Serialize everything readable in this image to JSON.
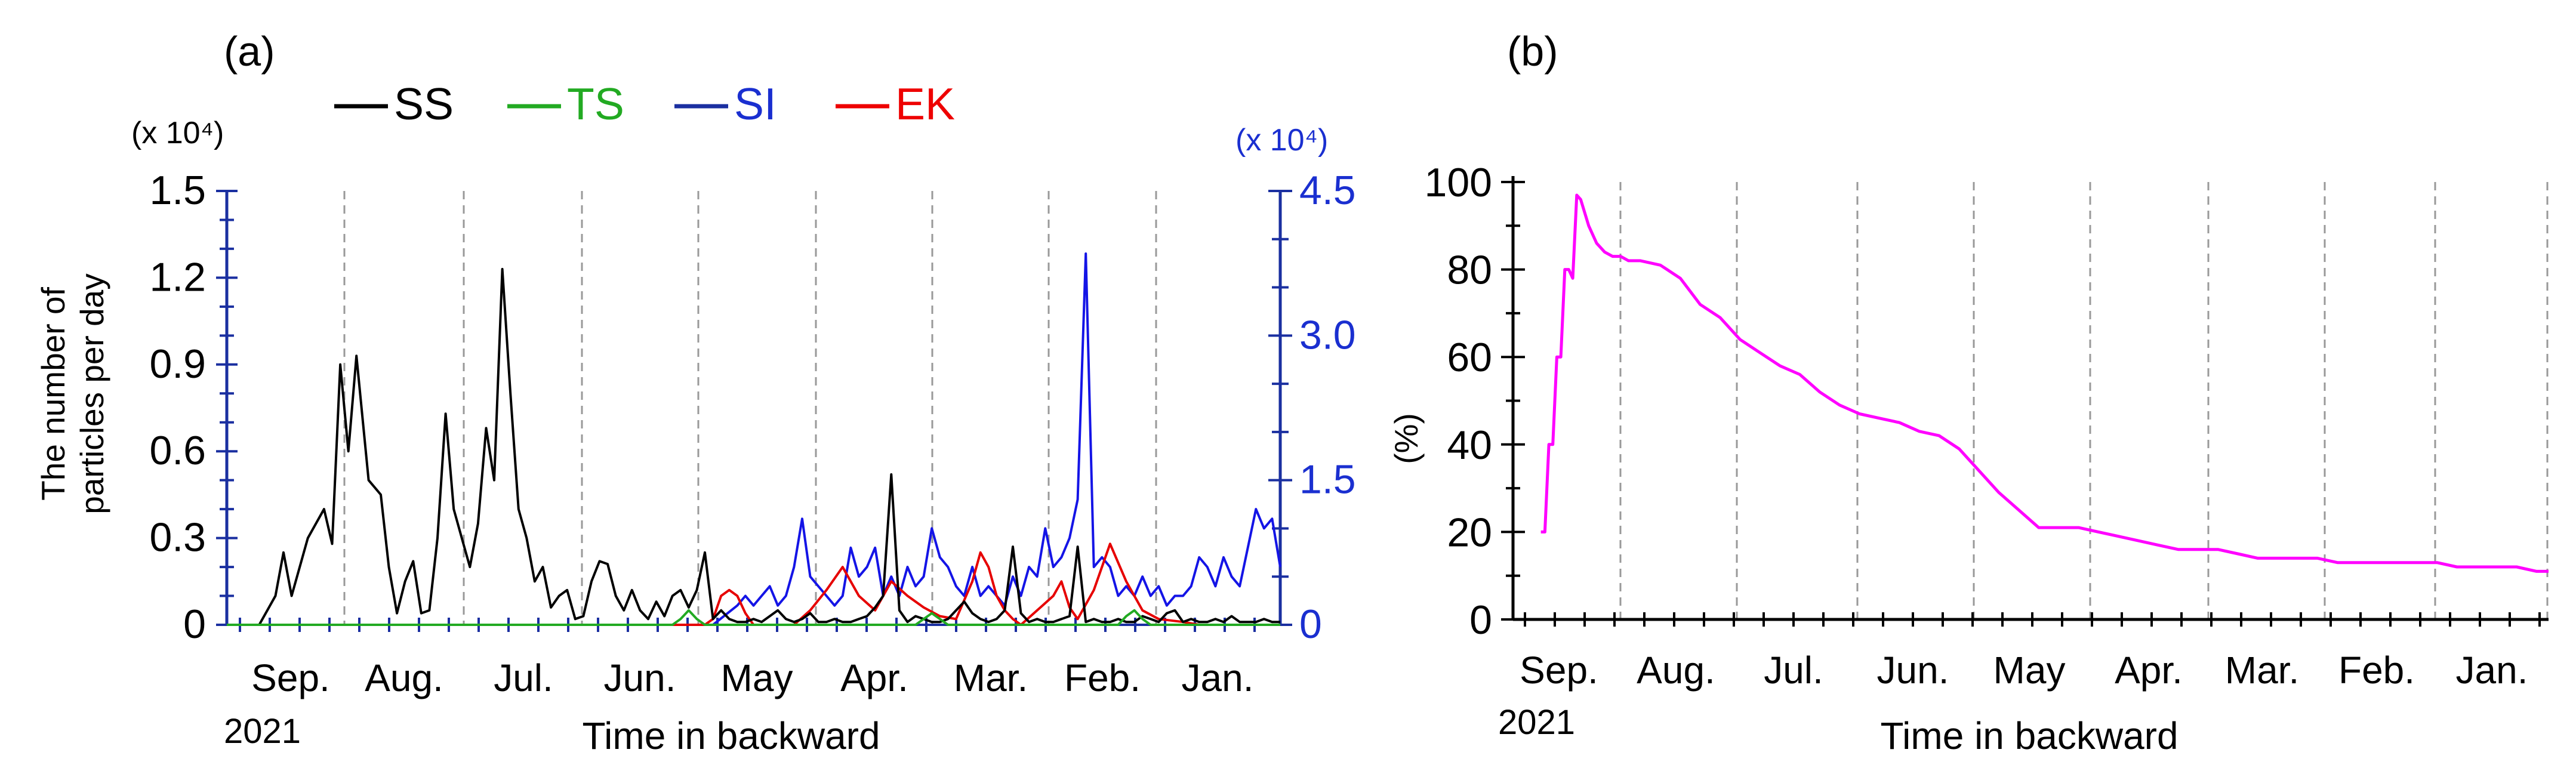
{
  "chart_data": [
    {
      "type": "line",
      "panel_label": "(a)",
      "xlabel": "Time in backward",
      "year_label": "2021",
      "months": [
        "Sep.",
        "Aug.",
        "Jul.",
        "Jun.",
        "May",
        "Apr.",
        "Mar.",
        "Feb.",
        "Jan."
      ],
      "ylabel_lines": [
        "The number of",
        "particles per day"
      ],
      "yscale_left": "(x 10⁴)",
      "yscale_right": "(x 10⁴)",
      "ylim_left": [
        0,
        1.5
      ],
      "ylim_right": [
        0,
        4.5
      ],
      "yticks_left": [
        "0",
        "0.3",
        "0.6",
        "0.9",
        "1.2",
        "1.5"
      ],
      "yticks_right": [
        "0",
        "1.5",
        "3.0",
        "4.5"
      ],
      "x_unit": "days in backward from the start of Sep. 2021",
      "xlim": [
        0,
        260
      ],
      "legend": [
        {
          "name": "SS",
          "color": "#000000"
        },
        {
          "name": "TS",
          "color": "#22aa22"
        },
        {
          "name": "SI",
          "color": "#0000ee"
        },
        {
          "name": "EK",
          "color": "#ee0000"
        }
      ],
      "series": [
        {
          "name": "SS",
          "axis": "left",
          "x": [
            0,
            8,
            12,
            14,
            16,
            20,
            24,
            26,
            28,
            30,
            32,
            35,
            38,
            40,
            42,
            44,
            46,
            48,
            50,
            52,
            54,
            56,
            58,
            60,
            62,
            64,
            66,
            68,
            70,
            72,
            74,
            76,
            78,
            80,
            82,
            84,
            86,
            88,
            90,
            92,
            94,
            96,
            98,
            100,
            102,
            104,
            106,
            108,
            110,
            112,
            114,
            116,
            118,
            120,
            122,
            124,
            126,
            128,
            130,
            132,
            134,
            136,
            138,
            140,
            142,
            144,
            146,
            148,
            150,
            152,
            154,
            156,
            158,
            160,
            162,
            164,
            166,
            168,
            170,
            172,
            174,
            176,
            178,
            180,
            182,
            184,
            186,
            188,
            190,
            192,
            194,
            196,
            198,
            200,
            202,
            204,
            206,
            208,
            210,
            212,
            214,
            216,
            218,
            220,
            222,
            224,
            226,
            228,
            230,
            232,
            234,
            236,
            238,
            240,
            242,
            244,
            246,
            248,
            250,
            252,
            254,
            256,
            258,
            260
          ],
          "y": [
            0,
            0,
            0.1,
            0.25,
            0.1,
            0.3,
            0.4,
            0.28,
            0.9,
            0.6,
            0.93,
            0.5,
            0.45,
            0.2,
            0.04,
            0.15,
            0.22,
            0.04,
            0.05,
            0.3,
            0.73,
            0.4,
            0.3,
            0.2,
            0.35,
            0.68,
            0.5,
            1.23,
            0.8,
            0.4,
            0.3,
            0.15,
            0.2,
            0.06,
            0.1,
            0.12,
            0.02,
            0.03,
            0.15,
            0.22,
            0.21,
            0.1,
            0.05,
            0.12,
            0.05,
            0.02,
            0.08,
            0.03,
            0.1,
            0.12,
            0.06,
            0.12,
            0.25,
            0.02,
            0.05,
            0.02,
            0.01,
            0.01,
            0.02,
            0.01,
            0.03,
            0.05,
            0.02,
            0.01,
            0.02,
            0.04,
            0.01,
            0.01,
            0.02,
            0.01,
            0.01,
            0.02,
            0.03,
            0.06,
            0.1,
            0.52,
            0.05,
            0.01,
            0.03,
            0.02,
            0.01,
            0.01,
            0.02,
            0.05,
            0.08,
            0.04,
            0.02,
            0.01,
            0.02,
            0.05,
            0.27,
            0.04,
            0.01,
            0.02,
            0.01,
            0.01,
            0.02,
            0.03,
            0.27,
            0.01,
            0.02,
            0.01,
            0.01,
            0.02,
            0.01,
            0.01,
            0.03,
            0.02,
            0.01,
            0.04,
            0.05,
            0.01,
            0.02,
            0.01,
            0.01,
            0.02,
            0.01,
            0.03,
            0.01,
            0.01,
            0.01,
            0.02,
            0.01,
            0.01
          ]
        },
        {
          "name": "TS",
          "axis": "left",
          "x": [
            0,
            110,
            112,
            114,
            116,
            118,
            120,
            130,
            170,
            172,
            174,
            176,
            178,
            220,
            222,
            224,
            226,
            228,
            260
          ],
          "y": [
            0,
            0,
            0.02,
            0.05,
            0.02,
            0,
            0,
            0,
            0,
            0.02,
            0.04,
            0.02,
            0,
            0,
            0.03,
            0.05,
            0.02,
            0,
            0
          ]
        },
        {
          "name": "SI",
          "axis": "right",
          "x": [
            0,
            120,
            126,
            128,
            130,
            132,
            134,
            136,
            138,
            140,
            142,
            144,
            146,
            148,
            150,
            152,
            154,
            156,
            158,
            160,
            162,
            164,
            166,
            168,
            170,
            172,
            174,
            176,
            178,
            180,
            182,
            184,
            186,
            188,
            190,
            192,
            194,
            196,
            198,
            200,
            202,
            204,
            206,
            208,
            210,
            212,
            214,
            216,
            218,
            220,
            222,
            224,
            226,
            228,
            230,
            232,
            234,
            236,
            238,
            240,
            242,
            244,
            246,
            248,
            250,
            252,
            254,
            256,
            258,
            260
          ],
          "y": [
            0,
            0,
            0.2,
            0.3,
            0.2,
            0.3,
            0.4,
            0.2,
            0.3,
            0.6,
            1.1,
            0.5,
            0.4,
            0.3,
            0.2,
            0.3,
            0.8,
            0.5,
            0.6,
            0.8,
            0.3,
            0.5,
            0.3,
            0.6,
            0.4,
            0.5,
            1.0,
            0.7,
            0.6,
            0.4,
            0.3,
            0.6,
            0.3,
            0.4,
            0.3,
            0.2,
            0.5,
            0.3,
            0.6,
            0.5,
            1.0,
            0.6,
            0.7,
            0.9,
            1.3,
            3.85,
            0.6,
            0.7,
            0.6,
            0.3,
            0.4,
            0.3,
            0.5,
            0.3,
            0.4,
            0.2,
            0.3,
            0.3,
            0.4,
            0.7,
            0.6,
            0.4,
            0.7,
            0.5,
            0.4,
            0.8,
            1.2,
            1.0,
            1.1,
            0.6
          ]
        },
        {
          "name": "EK",
          "axis": "left",
          "x": [
            0,
            118,
            120,
            122,
            124,
            126,
            128,
            130,
            140,
            144,
            148,
            152,
            156,
            160,
            164,
            168,
            172,
            176,
            180,
            184,
            186,
            188,
            190,
            192,
            194,
            196,
            200,
            204,
            206,
            208,
            210,
            214,
            218,
            222,
            226,
            230,
            236,
            240,
            260
          ],
          "y": [
            0,
            0,
            0.02,
            0.1,
            0.12,
            0.1,
            0.04,
            0,
            0,
            0.05,
            0.12,
            0.2,
            0.1,
            0.05,
            0.15,
            0.1,
            0.06,
            0.03,
            0.02,
            0.15,
            0.25,
            0.2,
            0.1,
            0.05,
            0.02,
            0,
            0.05,
            0.1,
            0.15,
            0.06,
            0.02,
            0.12,
            0.28,
            0.15,
            0.05,
            0.02,
            0.01,
            0,
            0
          ]
        }
      ]
    },
    {
      "type": "line",
      "panel_label": "(b)",
      "xlabel": "Time in backward",
      "year_label": "2021",
      "ylabel": "(%)",
      "months": [
        "Sep.",
        "Aug.",
        "Jul.",
        "Jun.",
        "May",
        "Apr.",
        "Mar.",
        "Feb.",
        "Jan."
      ],
      "ylim": [
        0,
        100
      ],
      "yticks": [
        "0",
        "20",
        "40",
        "60",
        "80",
        "100"
      ],
      "x_unit": "days in backward from the start of Sep. 2021",
      "xlim": [
        -7,
        253
      ],
      "series": [
        {
          "name": "",
          "color": "#ff00ff",
          "x": [
            0,
            1,
            2,
            3,
            4,
            5,
            6,
            7,
            8,
            9,
            10,
            11,
            12,
            14,
            16,
            18,
            20,
            22,
            25,
            30,
            35,
            40,
            45,
            50,
            55,
            60,
            65,
            70,
            75,
            80,
            85,
            90,
            95,
            100,
            105,
            110,
            115,
            120,
            125,
            130,
            135,
            140,
            145,
            150,
            155,
            160,
            165,
            170,
            175,
            180,
            185,
            190,
            195,
            200,
            205,
            210,
            215,
            220,
            225,
            230,
            235,
            240,
            245,
            250,
            253
          ],
          "y": [
            20,
            20,
            40,
            40,
            60,
            60,
            80,
            80,
            78,
            97,
            96,
            93,
            90,
            86,
            84,
            83,
            83,
            82,
            82,
            81,
            78,
            72,
            69,
            64,
            61,
            58,
            56,
            52,
            49,
            47,
            46,
            45,
            43,
            42,
            39,
            34,
            29,
            25,
            21,
            21,
            21,
            20,
            19,
            18,
            17,
            16,
            16,
            16,
            15,
            14,
            14,
            14,
            14,
            13,
            13,
            13,
            13,
            13,
            13,
            12,
            12,
            12,
            12,
            11,
            11
          ]
        }
      ]
    }
  ]
}
